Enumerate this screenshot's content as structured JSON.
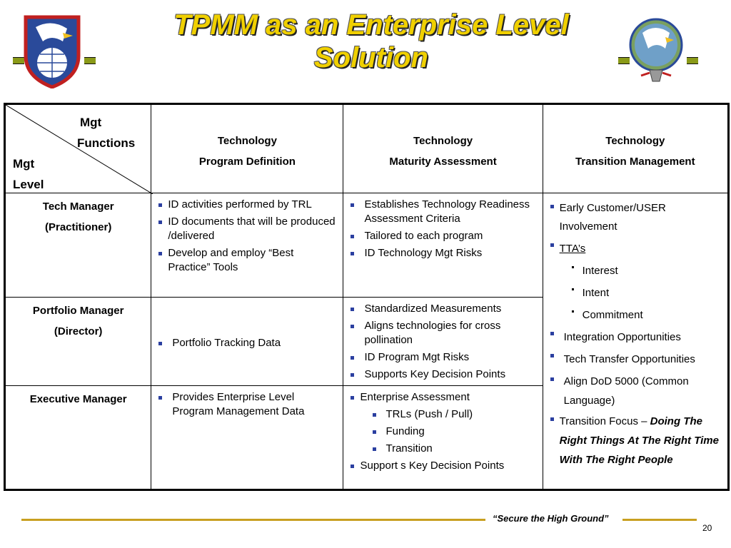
{
  "title": {
    "line1": "TPMM as an Enterprise Level",
    "line2": "Solution"
  },
  "header": {
    "corner_top1": "Mgt",
    "corner_top2": "Functions",
    "corner_bot1": "Mgt",
    "corner_bot2": "Level",
    "col1": [
      "Technology",
      "Program Definition"
    ],
    "col2": [
      "Technology",
      "Maturity Assessment"
    ],
    "col3": [
      "Technology",
      "Transition  Management"
    ]
  },
  "rows": [
    {
      "level": [
        "Tech Manager",
        "(Practitioner)"
      ],
      "col1": [
        "ID activities performed by TRL",
        "ID documents that will be produced /delivered",
        "Develop and employ “Best Practice” Tools"
      ],
      "col2": [
        "Establishes Technology Readiness Assessment Criteria",
        "Tailored to each program",
        "ID Technology Mgt Risks"
      ]
    },
    {
      "level": [
        "Portfolio Manager",
        "(Director)"
      ],
      "col1": [
        "Portfolio Tracking Data"
      ],
      "col2": [
        "Standardized Measurements",
        "Aligns technologies for cross pollination",
        "ID Program Mgt Risks",
        "Supports Key Decision Points"
      ]
    },
    {
      "level": [
        "Executive Manager"
      ],
      "col1": [
        "Provides Enterprise Level Program Management Data"
      ],
      "col2_head": "Enterprise  Assessment",
      "col2_sub": [
        "TRLs (Push / Pull)",
        "Funding",
        "Transition"
      ],
      "col2_tail": "Support s Key Decision Points"
    }
  ],
  "col3": {
    "early": "Early Customer/USER Involvement",
    "ttas": "TTA’s",
    "tta_items": [
      "Interest",
      "Intent",
      "Commitment"
    ],
    "integration": "Integration Opportunities",
    "tech_transfer": "Tech Transfer Opportunities",
    "dod": "Align DoD 5000 (Common Language)",
    "focus_prefix": "Transition Focus – ",
    "focus_bold": "Doing The Right Things At The Right Time With The Right People"
  },
  "footer": {
    "slogan": "“Secure the High Ground”",
    "page": "20"
  },
  "colors": {
    "title": "#f0d000",
    "bullet": "#2b3fa0",
    "footer_line": "#c8a020",
    "dash": "#8a9a18"
  }
}
